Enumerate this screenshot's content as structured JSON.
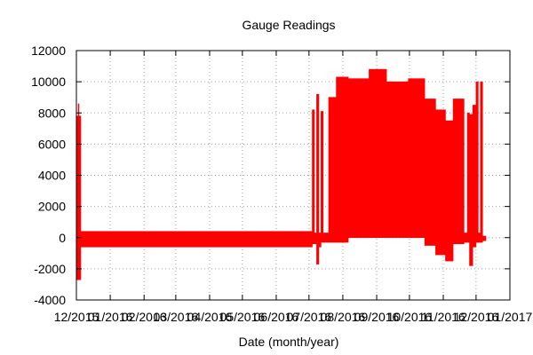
{
  "chart_data": {
    "type": "area",
    "title": "Gauge Readings",
    "xlabel": "Date (month/year)",
    "ylabel": "",
    "ylim": [
      -4000,
      12000
    ],
    "yticks": [
      -4000,
      -2000,
      0,
      2000,
      4000,
      6000,
      8000,
      10000,
      12000
    ],
    "xlim": [
      "2015-12-01",
      "2017-01-01"
    ],
    "xticks": [
      "2015-12-01",
      "2016-01-01",
      "2016-02-01",
      "2016-03-01",
      "2016-04-01",
      "2016-05-01",
      "2016-06-01",
      "2016-07-01",
      "2016-08-01",
      "2016-09-01",
      "2016-10-01",
      "2016-11-01",
      "2016-12-01",
      "2017-01-01"
    ],
    "xtick_labels": [
      "12/2015",
      "01/2016",
      "02/2016",
      "03/2016",
      "04/2016",
      "05/2016",
      "06/2016",
      "07/2016",
      "08/2016",
      "09/2016",
      "10/2016",
      "11/2016",
      "12/2016",
      "01/2017"
    ],
    "grid": true,
    "legend": "none",
    "series": [
      {
        "color": "#ff0000",
        "segments": [
          {
            "start": "2015-12-01",
            "end": "2015-12-05",
            "max": 7800,
            "min": -2700,
            "peak": 8600
          },
          {
            "start": "2015-12-05",
            "end": "2016-07-04",
            "max": 400,
            "min": -600
          },
          {
            "start": "2016-07-04",
            "end": "2016-07-06",
            "max": 8200,
            "min": -400
          },
          {
            "start": "2016-07-06",
            "end": "2016-07-08",
            "max": 300,
            "min": -400
          },
          {
            "start": "2016-07-08",
            "end": "2016-07-10",
            "max": 9200,
            "min": -1700
          },
          {
            "start": "2016-07-10",
            "end": "2016-07-12",
            "max": 300,
            "min": -600
          },
          {
            "start": "2016-07-12",
            "end": "2016-07-14",
            "max": 8100,
            "min": -300
          },
          {
            "start": "2016-07-14",
            "end": "2016-07-19",
            "max": 300,
            "min": -300
          },
          {
            "start": "2016-07-19",
            "end": "2016-07-26",
            "max": 9000,
            "min": -300
          },
          {
            "start": "2016-07-26",
            "end": "2016-08-06",
            "max": 10300,
            "min": -300
          },
          {
            "start": "2016-08-06",
            "end": "2016-08-25",
            "max": 10200,
            "min": 0
          },
          {
            "start": "2016-08-25",
            "end": "2016-09-10",
            "max": 10800,
            "min": 0
          },
          {
            "start": "2016-09-10",
            "end": "2016-09-30",
            "max": 10000,
            "min": 0
          },
          {
            "start": "2016-09-30",
            "end": "2016-10-15",
            "max": 10200,
            "min": 0
          },
          {
            "start": "2016-10-15",
            "end": "2016-10-25",
            "max": 8900,
            "min": -500
          },
          {
            "start": "2016-10-25",
            "end": "2016-11-03",
            "max": 8200,
            "min": -1100
          },
          {
            "start": "2016-11-03",
            "end": "2016-11-10",
            "max": 7500,
            "min": -1500
          },
          {
            "start": "2016-11-10",
            "end": "2016-11-20",
            "max": 8900,
            "min": -400
          },
          {
            "start": "2016-11-20",
            "end": "2016-11-23",
            "max": 300,
            "min": -300
          },
          {
            "start": "2016-11-23",
            "end": "2016-11-25",
            "max": 8000,
            "min": -300
          },
          {
            "start": "2016-11-25",
            "end": "2016-11-28",
            "max": 7900,
            "min": -1800
          },
          {
            "start": "2016-11-28",
            "end": "2016-12-01",
            "max": 8500,
            "min": -600
          },
          {
            "start": "2016-12-01",
            "end": "2016-12-03",
            "max": 10000,
            "min": -300
          },
          {
            "start": "2016-12-03",
            "end": "2016-12-05",
            "max": 300,
            "min": -300
          },
          {
            "start": "2016-12-05",
            "end": "2016-12-07",
            "max": 10000,
            "min": -300
          },
          {
            "start": "2016-12-07",
            "end": "2016-12-10",
            "max": 100,
            "min": -200
          }
        ]
      }
    ]
  }
}
